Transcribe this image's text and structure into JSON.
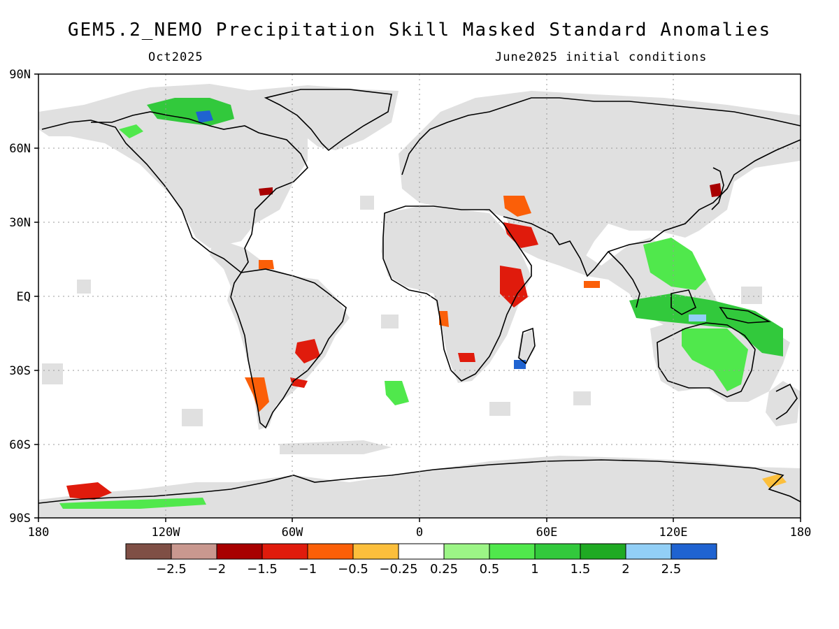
{
  "title": "GEM5.2_NEMO Precipitation Skill Masked Standard Anomalies",
  "subtitle_left": "Oct2025",
  "subtitle_right": "June2025 initial conditions",
  "lat_labels": [
    "90N",
    "60N",
    "30N",
    "EQ",
    "30S",
    "60S",
    "90S"
  ],
  "lon_labels": [
    "180",
    "120W",
    "60W",
    "0",
    "60E",
    "120E",
    "180"
  ],
  "colorbar": {
    "colors": [
      "#7f4f45",
      "#c9988f",
      "#a80000",
      "#e01b0c",
      "#fb5f08",
      "#fcbf3c",
      "#ffffff",
      "#9cf586",
      "#50e84c",
      "#32c93c",
      "#1faa23",
      "#92cff6",
      "#1f63d1"
    ],
    "labels": [
      "−2.5",
      "−2",
      "−1.5",
      "−1",
      "−0.5",
      "−0.25",
      "0.25",
      "0.5",
      "1",
      "1.5",
      "2",
      "2.5"
    ]
  },
  "colors": {
    "masked": "#e0e0e0",
    "coast": "#000000",
    "grid": "#999999"
  }
}
